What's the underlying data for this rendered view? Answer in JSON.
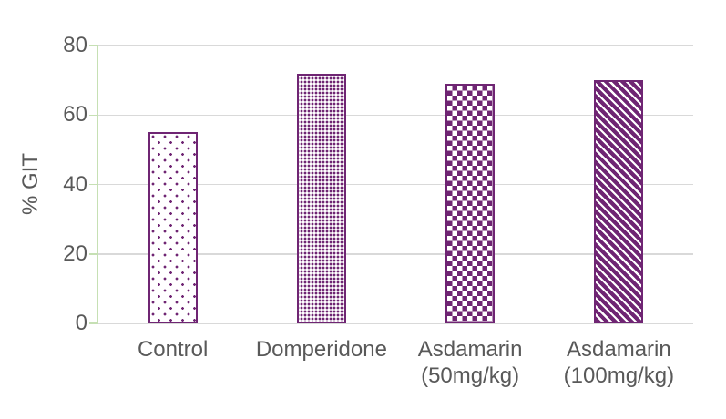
{
  "chart_data": {
    "type": "bar",
    "title": "",
    "categories": [
      "Control",
      "Domperidone",
      "Asdamarin (50mg/kg)",
      "Asdamarin (100mg/kg)"
    ],
    "values": [
      55,
      72,
      69,
      70
    ],
    "patterns": [
      "sparse-dots",
      "dense-dots",
      "checkerboard",
      "diagonal-stripes"
    ],
    "xlabel": "",
    "ylabel": "% GIT",
    "ylim": [
      0,
      80
    ],
    "yticks": [
      0,
      20,
      40,
      60,
      80
    ],
    "grid": true,
    "legend": "none",
    "colors": {
      "bar_fill": "#6F2573",
      "bar_border": "#6F2573",
      "value_axis_line": "#C6E0B4",
      "gridline": "#D9D9D9",
      "category_axis_line": "#D9D9D9",
      "text": "#595959",
      "background": "#FFFFFF"
    }
  }
}
